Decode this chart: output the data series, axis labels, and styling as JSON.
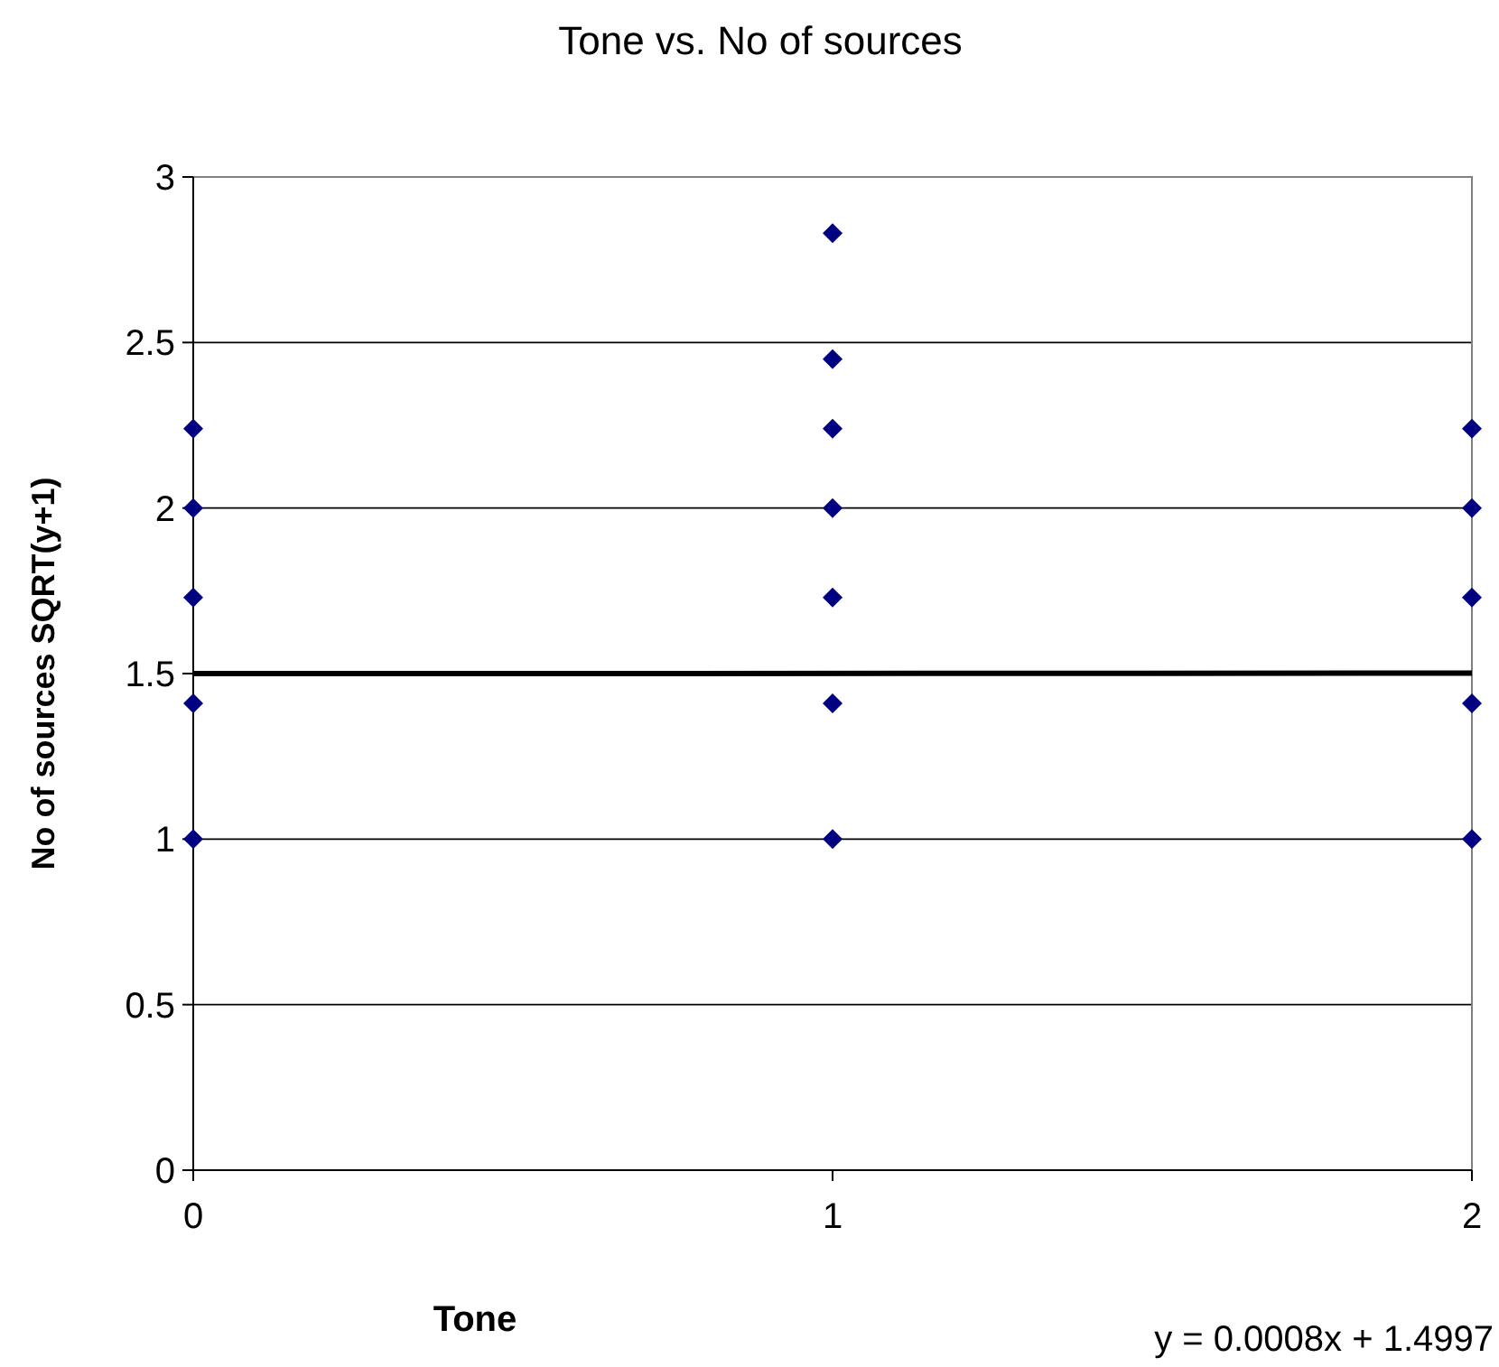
{
  "chart_data": {
    "type": "scatter",
    "title": "Tone vs. No of sources",
    "xlabel": "Tone",
    "ylabel": "No of sources SQRT(y+1)",
    "series": [
      {
        "type": "scatter",
        "color": "#000080",
        "marker": "diamond",
        "x": [
          0,
          0,
          0,
          0,
          0,
          1,
          1,
          1,
          1,
          1,
          1,
          1,
          2,
          2,
          2,
          2,
          2
        ],
        "values": [
          1,
          1.41,
          1.73,
          2,
          2.24,
          1,
          1.41,
          1.73,
          2,
          2.24,
          2.45,
          2.83,
          1,
          1.41,
          1.73,
          2,
          2.24
        ]
      },
      {
        "type": "line",
        "color": "#000000",
        "marker": "none",
        "line_style": "solid",
        "x": [
          0,
          2
        ],
        "values": [
          1.4997,
          1.5013
        ]
      }
    ],
    "xlim": [
      0,
      2
    ],
    "xticks": [
      0,
      1,
      2
    ],
    "ylim": [
      0,
      3
    ],
    "yticks": [
      0,
      0.5,
      1,
      1.5,
      2,
      2.5,
      3
    ],
    "grid": "y",
    "annotations": [
      "y = 0.0008x + 1.4997"
    ]
  }
}
